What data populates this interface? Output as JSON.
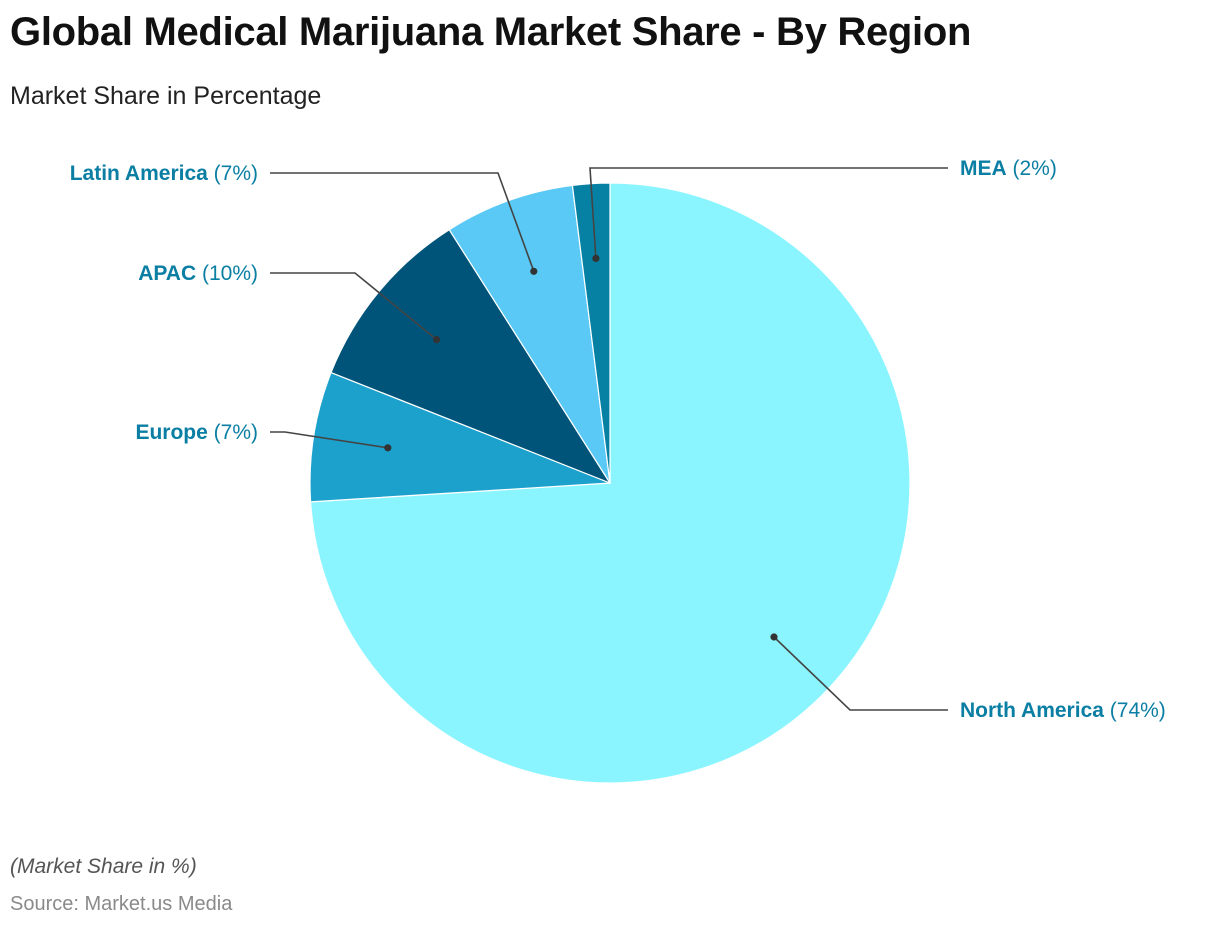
{
  "title": "Global Medical Marijuana Market Share - By Region",
  "subtitle": "Market Share in Percentage",
  "footnote": "(Market Share in %)",
  "source": "Source: Market.us Media",
  "chart_data": {
    "type": "pie",
    "title": "Global Medical Marijuana Market Share - By Region",
    "subtitle": "Market Share in Percentage",
    "unit": "%",
    "slices": [
      {
        "name": "North America",
        "value": 74,
        "label": "(74%)",
        "color": "#8AF5FF"
      },
      {
        "name": "Europe",
        "value": 7,
        "label": "(7%)",
        "color": "#1BA1CC"
      },
      {
        "name": "APAC",
        "value": 10,
        "label": "(10%)",
        "color": "#00547A"
      },
      {
        "name": "Latin America",
        "value": 7,
        "label": "(7%)",
        "color": "#5AC9F5"
      },
      {
        "name": "MEA",
        "value": 2,
        "label": "(2%)",
        "color": "#0681A3"
      }
    ],
    "label_color": "#0A7EA3",
    "leader_color": "#444444"
  }
}
